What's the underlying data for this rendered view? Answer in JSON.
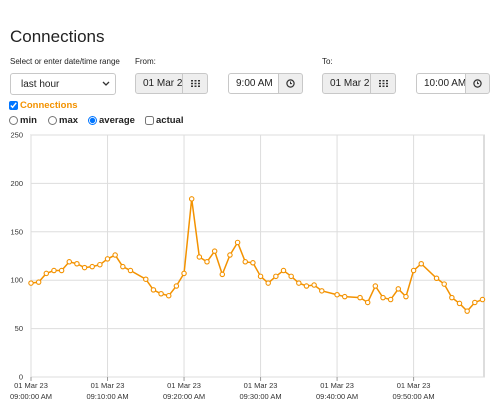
{
  "header": {
    "title": "Connections"
  },
  "range": {
    "label": "Select or enter date/time range",
    "selected": "last hour"
  },
  "from": {
    "label": "From:",
    "date": "01 Mar 2",
    "time": "9:00 AM"
  },
  "to": {
    "label": "To:",
    "date": "01 Mar 2",
    "time": "10:00 AM"
  },
  "series_toggle": {
    "checked": true
  },
  "aggregation": {
    "options": [
      "min",
      "max",
      "average"
    ],
    "selected": "average",
    "actual_label": "actual",
    "actual_checked": false
  },
  "chart_data": {
    "type": "line",
    "x": [
      "2023-03-01T09:00:00",
      "2023-03-01T09:01:00",
      "2023-03-01T09:02:00",
      "2023-03-01T09:03:00",
      "2023-03-01T09:04:00",
      "2023-03-01T09:05:00",
      "2023-03-01T09:06:00",
      "2023-03-01T09:07:00",
      "2023-03-01T09:08:00",
      "2023-03-01T09:09:00",
      "2023-03-01T09:10:00",
      "2023-03-01T09:11:00",
      "2023-03-01T09:12:00",
      "2023-03-01T09:13:00",
      "2023-03-01T09:15:00",
      "2023-03-01T09:16:00",
      "2023-03-01T09:17:00",
      "2023-03-01T09:18:00",
      "2023-03-01T09:19:00",
      "2023-03-01T09:20:00",
      "2023-03-01T09:21:00",
      "2023-03-01T09:22:00",
      "2023-03-01T09:23:00",
      "2023-03-01T09:24:00",
      "2023-03-01T09:25:00",
      "2023-03-01T09:26:00",
      "2023-03-01T09:27:00",
      "2023-03-01T09:28:00",
      "2023-03-01T09:29:00",
      "2023-03-01T09:30:00",
      "2023-03-01T09:31:00",
      "2023-03-01T09:32:00",
      "2023-03-01T09:33:00",
      "2023-03-01T09:34:00",
      "2023-03-01T09:35:00",
      "2023-03-01T09:36:00",
      "2023-03-01T09:37:00",
      "2023-03-01T09:38:00",
      "2023-03-01T09:40:00",
      "2023-03-01T09:41:00",
      "2023-03-01T09:43:00",
      "2023-03-01T09:44:00",
      "2023-03-01T09:45:00",
      "2023-03-01T09:46:00",
      "2023-03-01T09:47:00",
      "2023-03-01T09:48:00",
      "2023-03-01T09:49:00",
      "2023-03-01T09:50:00",
      "2023-03-01T09:51:00",
      "2023-03-01T09:53:00",
      "2023-03-01T09:54:00",
      "2023-03-01T09:55:00",
      "2023-03-01T09:56:00",
      "2023-03-01T09:57:00",
      "2023-03-01T09:58:00",
      "2023-03-01T09:59:00"
    ],
    "series": [
      {
        "name": "Connections",
        "color": "#f39200",
        "values": [
          97,
          98,
          107,
          110,
          110,
          119,
          117,
          113,
          114,
          116,
          122,
          126,
          114,
          110,
          101,
          90,
          86,
          84,
          94,
          107,
          184,
          124,
          119,
          130,
          106,
          126,
          139,
          119,
          118,
          104,
          97,
          104,
          110,
          104,
          97,
          94,
          95,
          89,
          85,
          83,
          82,
          77,
          94,
          82,
          80,
          91,
          83,
          110,
          117,
          102,
          96,
          82,
          76,
          68,
          77,
          80
        ]
      }
    ],
    "xlim": [
      "2023-03-01T09:00:00",
      "2023-03-01T09:59:12"
    ],
    "xticks": [
      {
        "value": "2023-03-01T09:00:00",
        "label": [
          "01 Mar 23",
          "09:00:00 AM"
        ]
      },
      {
        "value": "2023-03-01T09:10:00",
        "label": [
          "01 Mar 23",
          "09:10:00 AM"
        ]
      },
      {
        "value": "2023-03-01T09:20:00",
        "label": [
          "01 Mar 23",
          "09:20:00 AM"
        ]
      },
      {
        "value": "2023-03-01T09:30:00",
        "label": [
          "01 Mar 23",
          "09:30:00 AM"
        ]
      },
      {
        "value": "2023-03-01T09:40:00",
        "label": [
          "01 Mar 23",
          "09:40:00 AM"
        ]
      },
      {
        "value": "2023-03-01T09:50:00",
        "label": [
          "01 Mar 23",
          "09:50:00 AM"
        ]
      }
    ],
    "ylim": [
      0,
      250
    ],
    "yticks": [
      0,
      50,
      100,
      150,
      200,
      250
    ],
    "grid": true
  }
}
